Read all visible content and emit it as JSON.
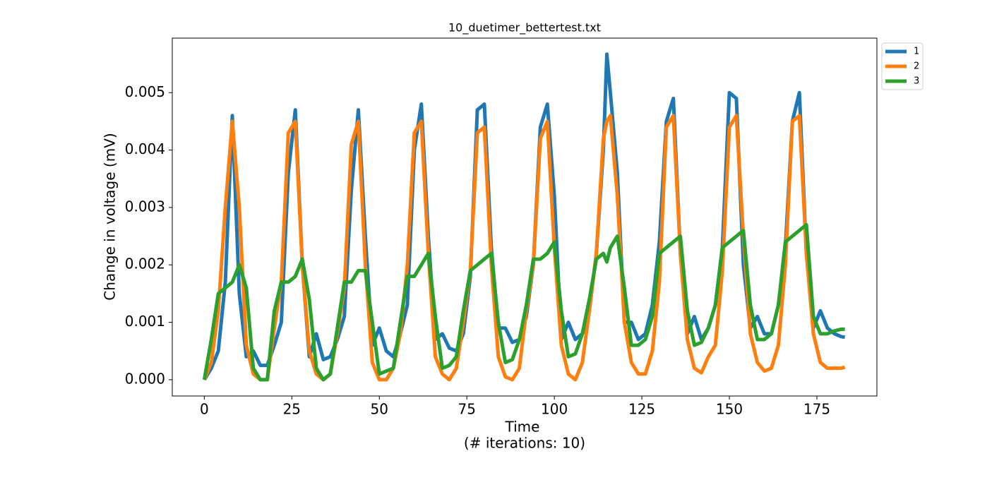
{
  "chart_data": {
    "type": "line",
    "title": "10_duetimer_bettertest.txt",
    "xlabel": [
      "Time",
      "(# iterations: 10)"
    ],
    "ylabel": "Change in voltage (mV)",
    "xlim": [
      -9.15,
      192.15
    ],
    "ylim": [
      -0.000284,
      0.00595
    ],
    "xticks": [
      0,
      25,
      50,
      75,
      100,
      125,
      150,
      175
    ],
    "yticks": [
      {
        "value": 0,
        "label": "0.000"
      },
      {
        "value": 0.001,
        "label": "0.001"
      },
      {
        "value": 0.002,
        "label": "0.002"
      },
      {
        "value": 0.003,
        "label": "0.003"
      },
      {
        "value": 0.004,
        "label": "0.004"
      },
      {
        "value": 0.005,
        "label": "0.005"
      }
    ],
    "legend": "outside upper right",
    "x": [
      0,
      2,
      4,
      6,
      8,
      10,
      12,
      14,
      16,
      18,
      20,
      22,
      24,
      26,
      28,
      30,
      32,
      34,
      36,
      38,
      40,
      42,
      44,
      46,
      48,
      50,
      52,
      54,
      56,
      58,
      60,
      62,
      64,
      66,
      68,
      70,
      72,
      74,
      76,
      78,
      80,
      82,
      84,
      86,
      88,
      90,
      92,
      94,
      96,
      98,
      100,
      102,
      104,
      106,
      108,
      110,
      112,
      114,
      115,
      116,
      118,
      120,
      122,
      124,
      126,
      128,
      130,
      132,
      134,
      136,
      138,
      140,
      142,
      144,
      146,
      148,
      150,
      152,
      154,
      156,
      158,
      160,
      162,
      164,
      166,
      168,
      170,
      172,
      174,
      176,
      178,
      180,
      182,
      183
    ],
    "series": [
      {
        "name": "1",
        "color": "#1f77b4",
        "values": [
          0,
          0.0002,
          0.0005,
          0.0017,
          0.0046,
          0.0015,
          0.0004,
          0.0005,
          0.00025,
          0.00025,
          0.0006,
          0.001,
          0.0036,
          0.0047,
          0.002,
          0.0004,
          0.0008,
          0.00035,
          0.0004,
          0.0007,
          0.0011,
          0.0033,
          0.0047,
          0.0025,
          0.0006,
          0.0009,
          0.0005,
          0.0004,
          0.0008,
          0.0013,
          0.004,
          0.0048,
          0.0025,
          0.0007,
          0.0008,
          0.00055,
          0.0005,
          0.0008,
          0.0018,
          0.0047,
          0.0048,
          0.0023,
          0.0009,
          0.0009,
          0.00065,
          0.0007,
          0.0011,
          0.002,
          0.0044,
          0.0048,
          0.0032,
          0.0007,
          0.001,
          0.0007,
          0.0008,
          0.0012,
          0.0022,
          0.004,
          0.00567,
          0.005,
          0.0036,
          0.001,
          0.001,
          0.0007,
          0.0008,
          0.0013,
          0.0024,
          0.0045,
          0.0049,
          0.0022,
          0.0008,
          0.0011,
          0.0007,
          0.0009,
          0.0013,
          0.0023,
          0.005,
          0.0049,
          0.002,
          0.0009,
          0.0011,
          0.0008,
          0.0008,
          0.0013,
          0.0023,
          0.0045,
          0.005,
          0.0022,
          0.0009,
          0.0012,
          0.0009,
          0.0008,
          0.00075,
          0.00074
        ]
      },
      {
        "name": "2",
        "color": "#ff7f0e",
        "values": [
          0,
          0.0003,
          0.0012,
          0.003,
          0.0045,
          0.003,
          0.0006,
          0.0001,
          0,
          0,
          0.0009,
          0.0017,
          0.0043,
          0.0045,
          0.002,
          0.0005,
          0.0001,
          0,
          0.0001,
          0.0008,
          0.0016,
          0.0041,
          0.0045,
          0.002,
          0.0003,
          0,
          0,
          0.0002,
          0.0008,
          0.002,
          0.0043,
          0.0045,
          0.0022,
          0.0004,
          0.0001,
          0,
          0.0002,
          0.001,
          0.0019,
          0.0043,
          0.0044,
          0.002,
          0.0004,
          5e-05,
          0,
          0.0002,
          0.0012,
          0.002,
          0.0042,
          0.0045,
          0.0023,
          0.0006,
          0.0001,
          0,
          0.0003,
          0.0012,
          0.0022,
          0.0042,
          0.0045,
          0.0046,
          0.0032,
          0.001,
          0.0003,
          0.0001,
          0.0001,
          0.0005,
          0.0017,
          0.0044,
          0.0046,
          0.0022,
          0.0007,
          0.0002,
          0.00012,
          0.0004,
          0.0006,
          0.0019,
          0.0044,
          0.0046,
          0.0025,
          0.0008,
          0.0003,
          0.00015,
          0.0002,
          0.0006,
          0.002,
          0.0045,
          0.0046,
          0.0022,
          0.0008,
          0.0003,
          0.0002,
          0.0002,
          0.0002,
          0.00022
        ]
      },
      {
        "name": "3",
        "color": "#2ca02c",
        "values": [
          0,
          0.0007,
          0.0015,
          0.0016,
          0.0017,
          0.002,
          0.0016,
          0.0002,
          0,
          0,
          0.0012,
          0.0017,
          0.0017,
          0.0018,
          0.0021,
          0.0014,
          0.0002,
          0,
          0.0001,
          0.0009,
          0.0017,
          0.0017,
          0.0019,
          0.0019,
          0.001,
          0.0001,
          0.00015,
          0.0002,
          0.001,
          0.0018,
          0.0018,
          0.002,
          0.0022,
          0.0011,
          0.0002,
          0.00025,
          0.0004,
          0.0012,
          0.0019,
          0.002,
          0.0021,
          0.0022,
          0.001,
          0.0003,
          0.00035,
          0.0007,
          0.0013,
          0.0021,
          0.0021,
          0.0022,
          0.0024,
          0.0012,
          0.0004,
          0.00045,
          0.0008,
          0.0014,
          0.0021,
          0.0022,
          0.00205,
          0.0023,
          0.0025,
          0.0016,
          0.0006,
          0.0006,
          0.0007,
          0.0011,
          0.0022,
          0.0023,
          0.0024,
          0.0025,
          0.0012,
          0.0006,
          0.00065,
          0.0009,
          0.0013,
          0.0023,
          0.0024,
          0.0025,
          0.0026,
          0.0013,
          0.0007,
          0.0007,
          0.0008,
          0.0013,
          0.0024,
          0.0025,
          0.0026,
          0.0027,
          0.0011,
          0.0008,
          0.0008,
          0.00085,
          0.00088,
          0.00088
        ]
      }
    ]
  }
}
